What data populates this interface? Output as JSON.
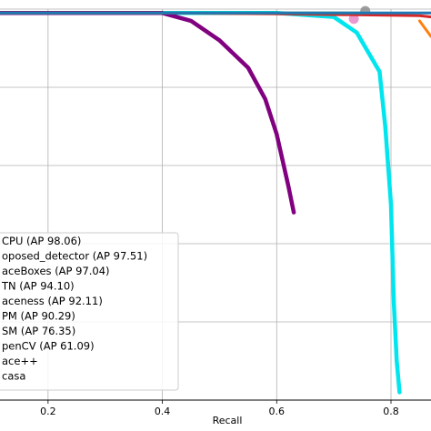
{
  "chart_data": {
    "type": "line",
    "xlabel": "Recall",
    "ylabel": "",
    "xlim": [
      0.1,
      0.87
    ],
    "ylim": [
      0.0,
      1.0
    ],
    "xticks": [
      0.2,
      0.4,
      0.6,
      0.8
    ],
    "xtick_labels": [
      "0.2",
      "0.4",
      "0.6",
      "0.8"
    ],
    "yticks": [
      0.2,
      0.4,
      0.6,
      0.8,
      1.0
    ],
    "grid": true,
    "legend_placement": "lower-left",
    "legend_partial": true,
    "series": [
      {
        "name": "…CPU (AP 98.06)",
        "label_visible": "CPU (AP 98.06)",
        "color": "#1f77b4",
        "x": [
          0.1,
          0.3,
          0.5,
          0.7,
          0.85,
          0.87
        ],
        "y": [
          0.99,
          0.99,
          0.99,
          0.99,
          0.99,
          0.99
        ]
      },
      {
        "name": "proposed_detector (AP 97.51)",
        "label_visible": "oposed_detector (AP 97.51)",
        "color": "#2ca02c",
        "x": [
          0.1,
          0.4,
          0.6,
          0.75
        ],
        "y": [
          0.99,
          0.99,
          0.99,
          0.99
        ]
      },
      {
        "name": "FaceBoxes (AP 97.04)",
        "label_visible": "aceBoxes (AP 97.04)",
        "color": "#d62728",
        "x": [
          0.1,
          0.4,
          0.6,
          0.75,
          0.85,
          0.87
        ],
        "y": [
          0.99,
          0.99,
          0.988,
          0.985,
          0.983,
          0.98
        ]
      },
      {
        "name": "…TN (AP 94.10)",
        "label_visible": "TN (AP 94.10)",
        "color": "#9467bd",
        "x": [
          0.1,
          0.3,
          0.45
        ],
        "y": [
          0.99,
          0.99,
          0.99
        ]
      },
      {
        "name": "…aceness (AP 92.11)",
        "label_visible": "aceness (AP 92.11)",
        "color": "#ff7f0e",
        "x": [
          0.85,
          0.86,
          0.87
        ],
        "y": [
          0.97,
          0.95,
          0.93
        ]
      },
      {
        "name": "…PM (AP 90.29)",
        "label_visible": "PM (AP 90.29)",
        "color": "#e377c2",
        "x": [
          0.735
        ],
        "y": [
          0.975
        ]
      },
      {
        "name": "…SM (AP 76.35)",
        "label_visible": "SM (AP 76.35)",
        "color": "#800080",
        "x": [
          0.1,
          0.4,
          0.45,
          0.5,
          0.55,
          0.58,
          0.6,
          0.62,
          0.63
        ],
        "y": [
          0.99,
          0.99,
          0.97,
          0.92,
          0.85,
          0.77,
          0.68,
          0.55,
          0.48
        ]
      },
      {
        "name": "OpenCV (AP 61.09)",
        "label_visible": "penCV (AP 61.09)",
        "color": "#7f7f7f",
        "x": [
          0.755
        ],
        "y": [
          0.995
        ]
      },
      {
        "name": "…ace++",
        "label_visible": "ace++",
        "color": "#bcbd22",
        "x": [],
        "y": []
      },
      {
        "name": "…casa",
        "label_visible": "casa",
        "color": "#00e5ee",
        "x": [
          0.1,
          0.5,
          0.6,
          0.7,
          0.74,
          0.78,
          0.79,
          0.8,
          0.805,
          0.81,
          0.815
        ],
        "y": [
          0.99,
          0.99,
          0.99,
          0.98,
          0.94,
          0.84,
          0.7,
          0.5,
          0.25,
          0.1,
          0.02
        ]
      }
    ]
  }
}
